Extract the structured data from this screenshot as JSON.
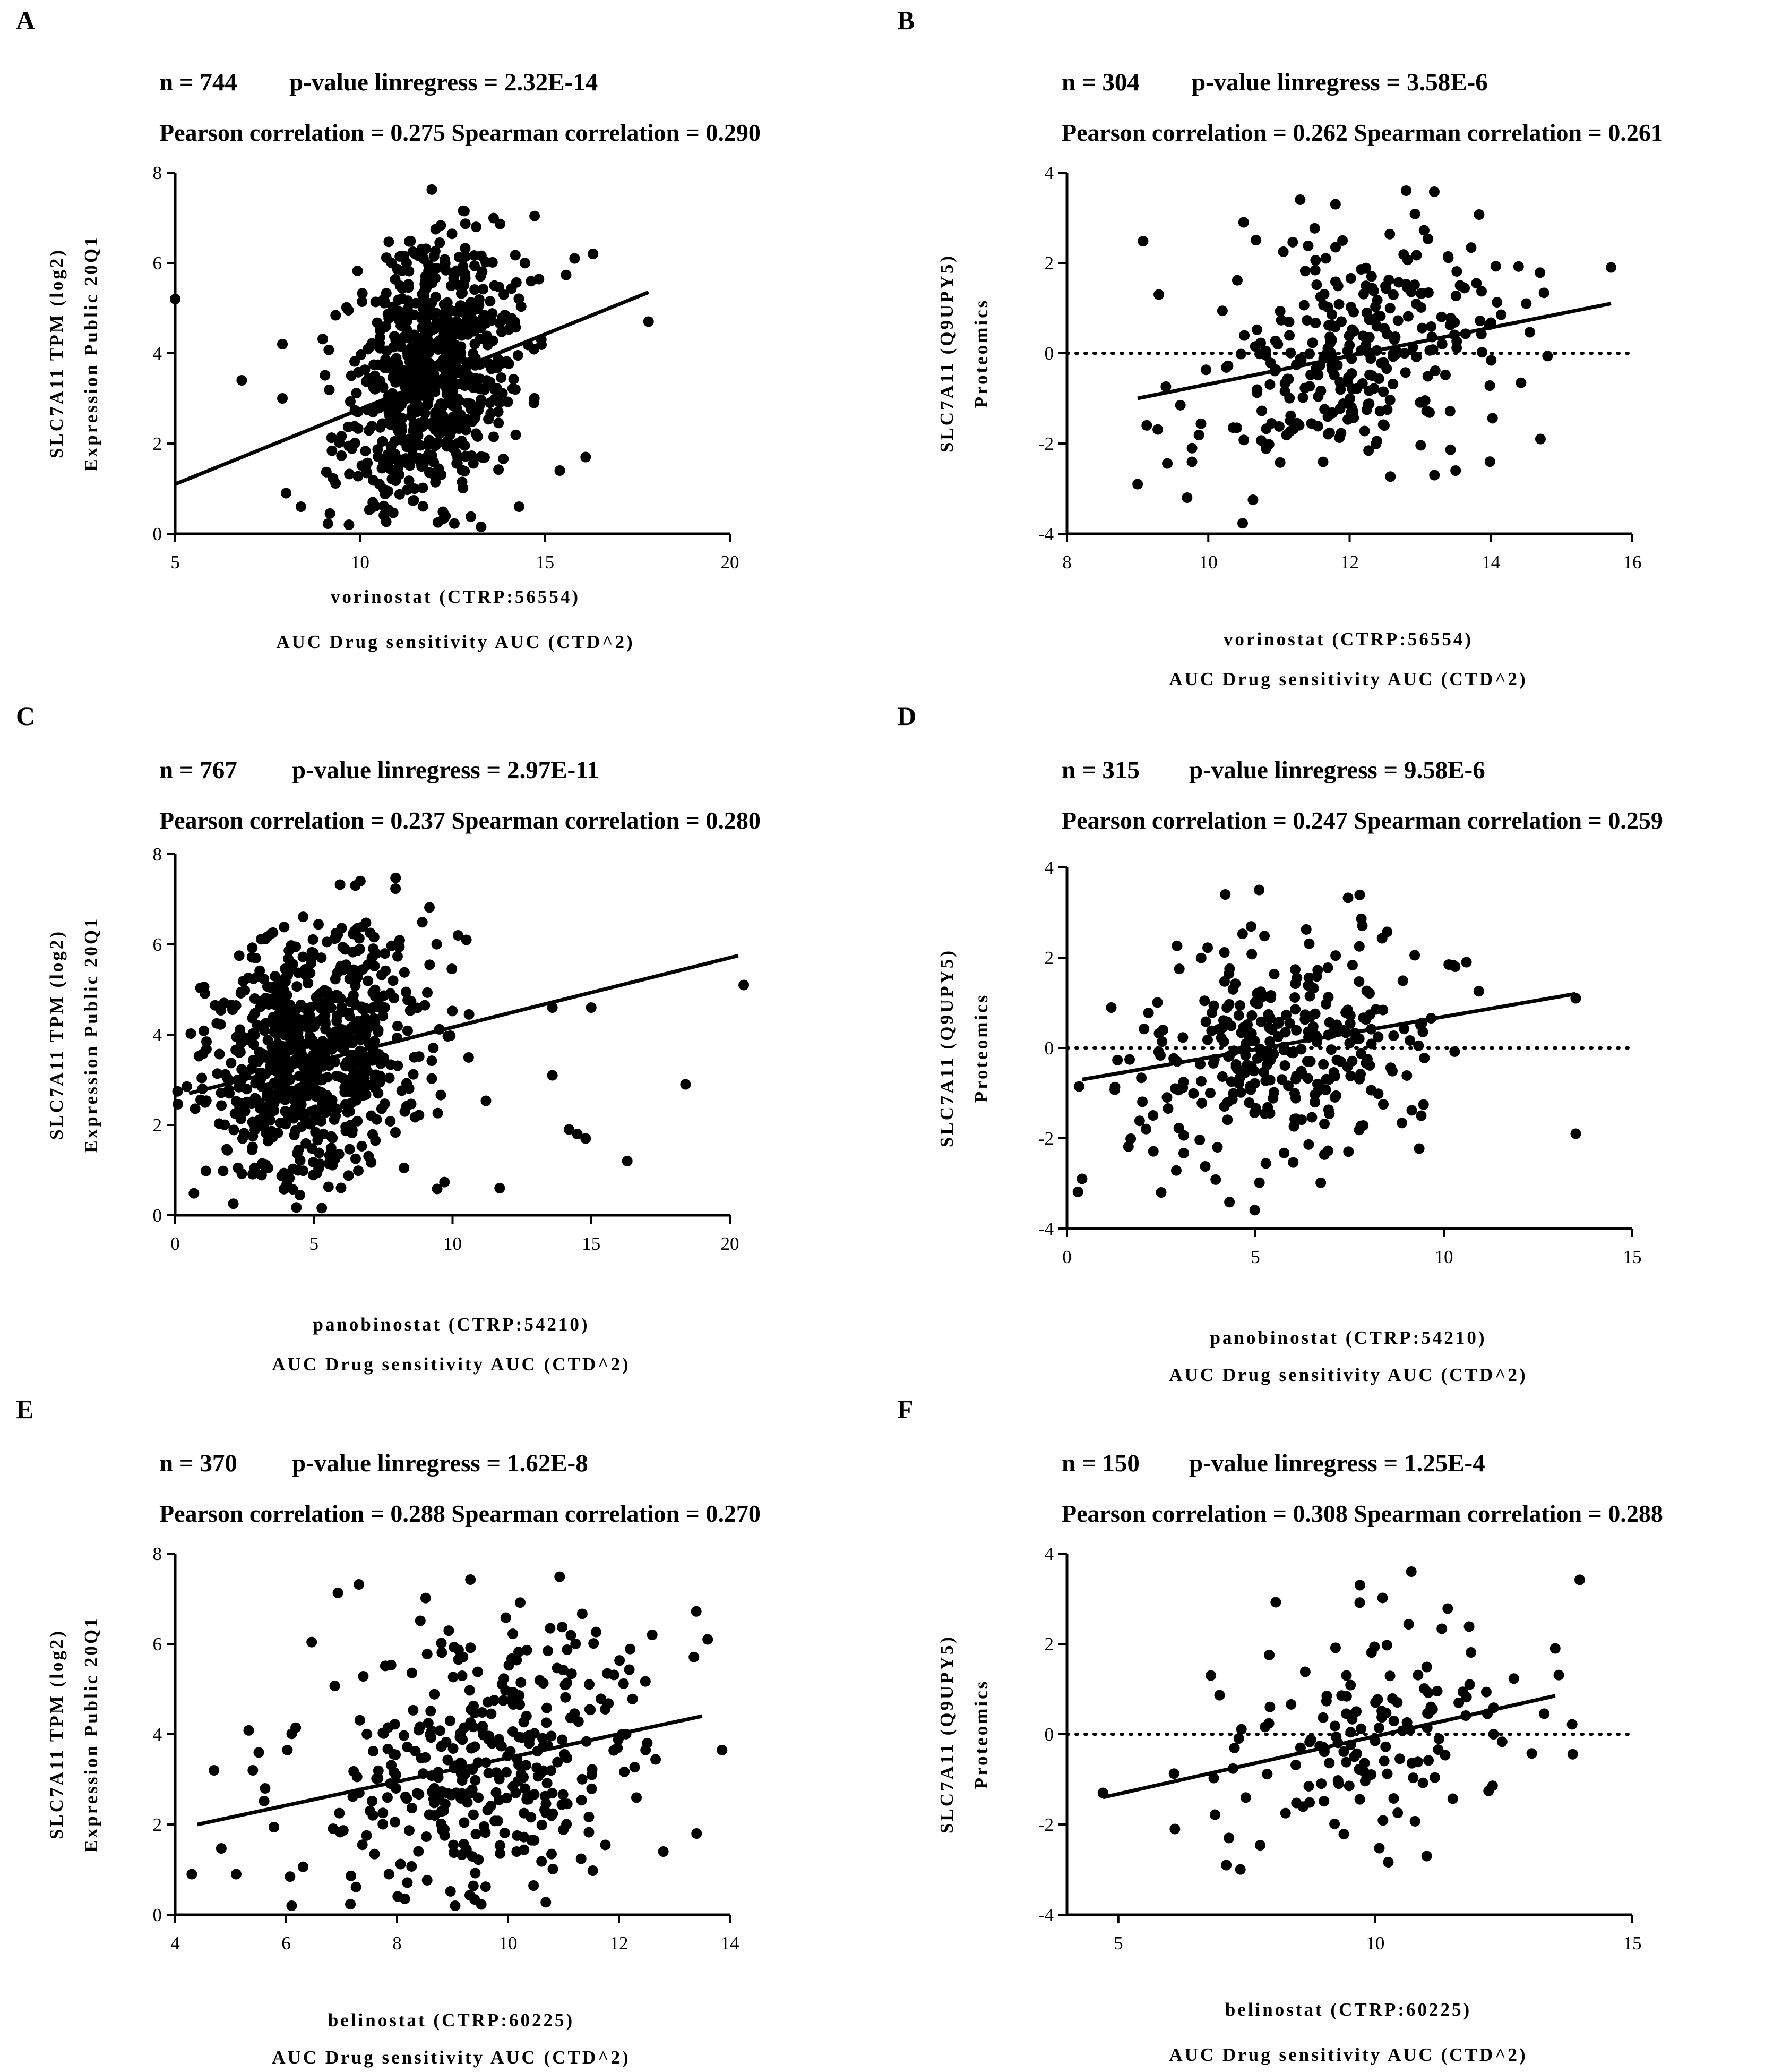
{
  "chart_data": [
    {
      "type": "scatter",
      "panel_label": "A",
      "stats_line1": {
        "n": "n = 744",
        "p": "p-value linregress =  2.32E-14"
      },
      "stats_line2": "Pearson correlation = 0.275 Spearman correlation = 0.290",
      "ylabel": "SLC7A11 TPM  (log2)",
      "ylabel2": "Expression Public 20Q1",
      "xlabel": "vorinostat (CTRP:56554)",
      "xlabel2": "AUC Drug sensitivity AUC (CTD^2)",
      "xlim": [
        5,
        20
      ],
      "xticks": [
        5,
        10,
        15,
        20
      ],
      "ylim": [
        0,
        8
      ],
      "yticks": [
        0,
        2,
        4,
        6,
        8
      ],
      "zero_line": false,
      "regression": {
        "x": [
          5,
          17.8
        ],
        "y": [
          1.1,
          5.35
        ]
      },
      "n_points": 744,
      "cloud_center": [
        11.9,
        3.8
      ],
      "cloud_spread": [
        1.15,
        1.45
      ],
      "points": [
        [
          5.0,
          5.2
        ],
        [
          6.8,
          3.4
        ],
        [
          7.9,
          4.2
        ],
        [
          7.9,
          3.0
        ],
        [
          8.0,
          0.9
        ],
        [
          8.4,
          0.6
        ],
        [
          14.3,
          0.6
        ],
        [
          14.7,
          2.9
        ],
        [
          15.4,
          1.4
        ],
        [
          15.8,
          6.1
        ],
        [
          16.3,
          6.2
        ],
        [
          16.1,
          1.7
        ],
        [
          17.8,
          4.7
        ],
        [
          14.9,
          4.3
        ],
        [
          9.7,
          0.2
        ]
      ]
    },
    {
      "type": "scatter",
      "panel_label": "B",
      "stats_line1": {
        "n": "n = 304",
        "p": "p-value linregress =  3.58E-6"
      },
      "stats_line2": "Pearson correlation = 0.262 Spearman correlation = 0.261",
      "ylabel": "SLC7A11 (Q9UPY5)",
      "ylabel2": "Proteomics",
      "xlabel": "vorinostat (CTRP:56554)",
      "xlabel2": "AUC Drug sensitivity AUC (CTD^2)",
      "xlim": [
        8,
        16
      ],
      "xticks": [
        8,
        10,
        12,
        14,
        16
      ],
      "ylim": [
        -4,
        4
      ],
      "yticks": [
        -4,
        -2,
        0,
        2,
        4
      ],
      "zero_line": true,
      "regression": {
        "x": [
          9.0,
          15.7
        ],
        "y": [
          -1.0,
          1.1
        ]
      },
      "n_points": 304,
      "cloud_center": [
        12.0,
        0.0
      ],
      "cloud_spread": [
        1.05,
        1.3
      ],
      "points": [
        [
          9.0,
          -2.9
        ],
        [
          9.7,
          -3.2
        ],
        [
          15.7,
          1.9
        ],
        [
          14.7,
          -1.9
        ],
        [
          13.5,
          -2.6
        ],
        [
          12.8,
          3.6
        ],
        [
          14.5,
          1.1
        ],
        [
          9.3,
          1.3
        ],
        [
          11.3,
          3.4
        ],
        [
          11.8,
          3.3
        ],
        [
          13.2,
          -2.7
        ],
        [
          10.5,
          2.9
        ]
      ]
    },
    {
      "type": "scatter",
      "panel_label": "C",
      "stats_line1": {
        "n": "n = 767",
        "p": "p-value linregress =  2.97E-11"
      },
      "stats_line2": "Pearson correlation = 0.237 Spearman correlation = 0.280",
      "ylabel": "SLC7A11 TPM  (log2)",
      "ylabel2": "Expression Public 20Q1",
      "xlabel": "panobinostat (CTRP:54210)",
      "xlabel2": "AUC Drug sensitivity AUC (CTD^2)",
      "xlim": [
        0,
        20
      ],
      "xticks": [
        0,
        5,
        10,
        15,
        20
      ],
      "ylim": [
        0,
        8
      ],
      "yticks": [
        0,
        2,
        4,
        6,
        8
      ],
      "zero_line": false,
      "regression": {
        "x": [
          0.5,
          20.3
        ],
        "y": [
          2.7,
          5.75
        ]
      },
      "n_points": 767,
      "cloud_center": [
        5.0,
        3.5
      ],
      "cloud_spread": [
        2.0,
        1.45
      ],
      "points": [
        [
          20.5,
          5.1
        ],
        [
          18.4,
          2.9
        ],
        [
          16.3,
          1.2
        ],
        [
          14.8,
          1.7
        ],
        [
          14.5,
          1.8
        ],
        [
          14.2,
          1.9
        ],
        [
          13.6,
          3.1
        ],
        [
          15.0,
          4.6
        ],
        [
          13.6,
          4.6
        ],
        [
          11.7,
          0.6
        ],
        [
          10.5,
          6.1
        ],
        [
          10.2,
          6.2
        ]
      ]
    },
    {
      "type": "scatter",
      "panel_label": "D",
      "stats_line1": {
        "n": "n = 315",
        "p": "p-value linregress =  9.58E-6"
      },
      "stats_line2": "Pearson correlation = 0.247 Spearman correlation = 0.259",
      "ylabel": "SLC7A11 (Q9UPY5)",
      "ylabel2": "Proteomics",
      "xlabel": "panobinostat (CTRP:54210)",
      "xlabel2": "AUC Drug sensitivity AUC (CTD^2)",
      "xlim": [
        0,
        15
      ],
      "xticks": [
        0,
        5,
        10,
        15
      ],
      "ylim": [
        -4,
        4
      ],
      "yticks": [
        -4,
        -2,
        0,
        2,
        4
      ],
      "zero_line": true,
      "regression": {
        "x": [
          0.4,
          13.5
        ],
        "y": [
          -0.7,
          1.2
        ]
      },
      "n_points": 315,
      "cloud_center": [
        5.8,
        0.1
      ],
      "cloud_spread": [
        2.1,
        1.25
      ],
      "points": [
        [
          13.5,
          1.1
        ],
        [
          13.5,
          -1.9
        ],
        [
          10.6,
          1.9
        ],
        [
          10.3,
          1.8
        ],
        [
          0.4,
          -2.9
        ],
        [
          2.5,
          -3.2
        ],
        [
          4.2,
          3.4
        ],
        [
          5.1,
          3.5
        ],
        [
          9.4,
          -1.5
        ]
      ]
    },
    {
      "type": "scatter",
      "panel_label": "E",
      "stats_line1": {
        "n": "n = 370",
        "p": "p-value linregress =  1.62E-8"
      },
      "stats_line2": "Pearson correlation = 0.288 Spearman correlation = 0.270",
      "ylabel": "SLC7A11 TPM  (log2)",
      "ylabel2": "Expression Public 20Q1",
      "xlabel": "belinostat (CTRP:60225)",
      "xlabel2": "AUC Drug sensitivity AUC (CTD^2)",
      "xlim": [
        4,
        14
      ],
      "xticks": [
        4,
        6,
        8,
        10,
        12,
        14
      ],
      "ylim": [
        0,
        8
      ],
      "yticks": [
        0,
        2,
        4,
        6,
        8
      ],
      "zero_line": false,
      "regression": {
        "x": [
          4.4,
          13.5
        ],
        "y": [
          2.0,
          4.4
        ]
      },
      "n_points": 370,
      "cloud_center": [
        9.6,
        3.3
      ],
      "cloud_spread": [
        1.6,
        1.5
      ],
      "points": [
        [
          4.3,
          0.9
        ],
        [
          4.7,
          3.2
        ],
        [
          5.1,
          0.9
        ],
        [
          5.4,
          3.2
        ],
        [
          6.1,
          0.2
        ],
        [
          13.6,
          6.1
        ],
        [
          13.4,
          1.8
        ],
        [
          12.8,
          1.4
        ],
        [
          12.6,
          6.2
        ]
      ]
    },
    {
      "type": "scatter",
      "panel_label": "F",
      "stats_line1": {
        "n": "n = 150",
        "p": "p-value linregress =  1.25E-4"
      },
      "stats_line2": "Pearson correlation = 0.308 Spearman correlation = 0.288",
      "ylabel": "SLC7A11 (Q9UPY5)",
      "ylabel2": "Proteomics",
      "xlabel": "belinostat (CTRP:60225)",
      "xlabel2": "AUC Drug sensitivity AUC (CTD^2)",
      "xlim": [
        4,
        15
      ],
      "xticks": [
        5,
        10,
        15
      ],
      "ylim": [
        -4,
        4
      ],
      "yticks": [
        -4,
        -2,
        0,
        2,
        4
      ],
      "zero_line": true,
      "regression": {
        "x": [
          4.7,
          13.5
        ],
        "y": [
          -1.4,
          0.85
        ]
      },
      "n_points": 150,
      "cloud_center": [
        9.7,
        -0.1
      ],
      "cloud_spread": [
        1.45,
        1.2
      ],
      "points": [
        [
          4.7,
          -1.3
        ],
        [
          6.1,
          -2.1
        ],
        [
          6.8,
          1.3
        ],
        [
          7.1,
          -2.9
        ],
        [
          9.7,
          3.3
        ],
        [
          10.7,
          3.6
        ],
        [
          13.5,
          1.9
        ],
        [
          12.3,
          0.0
        ],
        [
          11.0,
          -2.7
        ]
      ]
    }
  ]
}
